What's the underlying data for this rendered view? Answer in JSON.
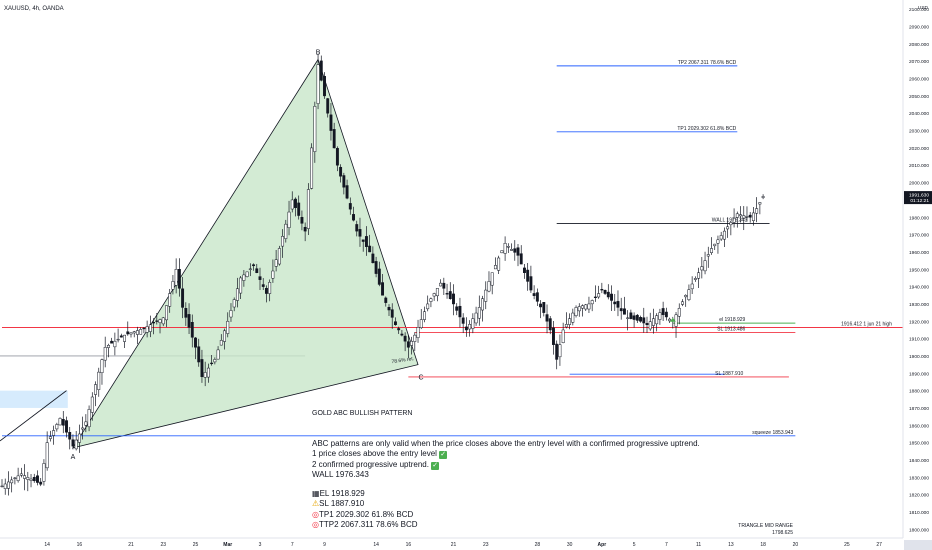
{
  "header": {
    "symbol": "XAUUSD, 4h, OANDA"
  },
  "currency": "USD",
  "price_badge": {
    "price": "1991.630",
    "countdown": "01:12:21"
  },
  "colors": {
    "background": "#ffffff",
    "candle": "#131722",
    "triangle_fill": "#c8e6c9",
    "red_line": "#f23645",
    "blue_line": "#2962ff",
    "green_line": "#4caf50",
    "text": "#131722"
  },
  "chart_data": {
    "type": "candlestick",
    "instrument": "XAUUSD, 4h, OANDA",
    "y_unit": "USD",
    "ylim": [
      1795,
      2103
    ],
    "y_ticks": [
      1800,
      1810,
      1820,
      1830,
      1840,
      1850,
      1860,
      1870,
      1880,
      1890,
      1900,
      1910,
      1920,
      1930,
      1940,
      1950,
      1960,
      1970,
      1980,
      1990,
      2000,
      2010,
      2020,
      2030,
      2040,
      2050,
      2060,
      2070,
      2080,
      2090,
      2100
    ],
    "y_tick_labels": [
      "1800.000",
      "1810.000",
      "1820.000",
      "1830.000",
      "1840.000",
      "1850.000",
      "1860.000",
      "1870.000",
      "1880.000",
      "1890.000",
      "1900.000",
      "1910.000",
      "1920.000",
      "1930.000",
      "1940.000",
      "1950.000",
      "1960.000",
      "1970.000",
      "1980.000",
      "1990.000",
      "2000.000",
      "2010.000",
      "2020.000",
      "2030.000",
      "2040.000",
      "2050.000",
      "2060.000",
      "2070.000",
      "2080.000",
      "2090.000",
      "2100.000"
    ],
    "x_ticks": [
      {
        "label": "14",
        "i": 7
      },
      {
        "label": "16",
        "i": 12
      },
      {
        "label": "21",
        "i": 20
      },
      {
        "label": "23",
        "i": 25
      },
      {
        "label": "25",
        "i": 30
      },
      {
        "label": "Mar",
        "i": 35,
        "bold": true
      },
      {
        "label": "3",
        "i": 40
      },
      {
        "label": "7",
        "i": 45
      },
      {
        "label": "9",
        "i": 50
      },
      {
        "label": "14",
        "i": 58
      },
      {
        "label": "16",
        "i": 63
      },
      {
        "label": "21",
        "i": 70
      },
      {
        "label": "23",
        "i": 75
      },
      {
        "label": "28",
        "i": 83
      },
      {
        "label": "30",
        "i": 88
      },
      {
        "label": "Apr",
        "i": 93,
        "bold": true
      },
      {
        "label": "5",
        "i": 98
      },
      {
        "label": "7",
        "i": 103
      },
      {
        "label": "11",
        "i": 108
      },
      {
        "label": "13",
        "i": 113
      },
      {
        "label": "18",
        "i": 118
      },
      {
        "label": "20",
        "i": 123
      },
      {
        "label": "25",
        "i": 131
      },
      {
        "label": "27",
        "i": 136
      }
    ],
    "close_anchors": [
      [
        0,
        1825
      ],
      [
        3,
        1832
      ],
      [
        6,
        1826
      ],
      [
        7,
        1850
      ],
      [
        9,
        1864
      ],
      [
        10,
        1856
      ],
      [
        11,
        1848
      ],
      [
        13,
        1862
      ],
      [
        16,
        1905
      ],
      [
        19,
        1912
      ],
      [
        22,
        1916
      ],
      [
        25,
        1922
      ],
      [
        27,
        1950
      ],
      [
        28,
        1928
      ],
      [
        30,
        1905
      ],
      [
        31,
        1888
      ],
      [
        33,
        1898
      ],
      [
        35,
        1920
      ],
      [
        37,
        1945
      ],
      [
        39,
        1952
      ],
      [
        41,
        1936
      ],
      [
        43,
        1962
      ],
      [
        45,
        1990
      ],
      [
        47,
        1972
      ],
      [
        49,
        2068
      ],
      [
        50,
        2050
      ],
      [
        52,
        2010
      ],
      [
        55,
        1972
      ],
      [
        57,
        1960
      ],
      [
        59,
        1935
      ],
      [
        61,
        1918
      ],
      [
        62,
        1912
      ],
      [
        63,
        1905
      ],
      [
        64,
        1912
      ],
      [
        66,
        1930
      ],
      [
        68,
        1942
      ],
      [
        70,
        1930
      ],
      [
        72,
        1915
      ],
      [
        74,
        1928
      ],
      [
        76,
        1948
      ],
      [
        78,
        1965
      ],
      [
        80,
        1958
      ],
      [
        82,
        1938
      ],
      [
        84,
        1925
      ],
      [
        85,
        1915
      ],
      [
        86,
        1898
      ],
      [
        87,
        1915
      ],
      [
        89,
        1928
      ],
      [
        91,
        1930
      ],
      [
        93,
        1938
      ],
      [
        95,
        1930
      ],
      [
        97,
        1922
      ],
      [
        99,
        1920
      ],
      [
        100,
        1918
      ],
      [
        102,
        1925
      ],
      [
        104,
        1920
      ],
      [
        106,
        1935
      ],
      [
        108,
        1948
      ],
      [
        110,
        1962
      ],
      [
        112,
        1972
      ],
      [
        114,
        1982
      ],
      [
        116,
        1980
      ],
      [
        117,
        1985
      ],
      [
        118,
        1992
      ]
    ],
    "abc_pattern": {
      "title": "GOLD ABC BULLISH PATTERN",
      "points": {
        "A": {
          "i": 11,
          "price": 1847
        },
        "B": {
          "i": 49,
          "price": 2071
        },
        "C": {
          "i": 64.5,
          "price": 1895
        }
      },
      "retracement_label": "78.6% ret."
    },
    "levels": [
      {
        "name": "TP2",
        "price": 2067.311,
        "label": "TP2 2067.311 78.6% BCD",
        "color": "#2962ff",
        "i1": 86,
        "i2": 114
      },
      {
        "name": "TP1",
        "price": 2029.302,
        "label": "TP1 2029.302 61.8% BCD",
        "color": "#2962ff",
        "i1": 86,
        "i2": 114
      },
      {
        "name": "WALL",
        "price": 1976.343,
        "label": "WALL 1976.343",
        "color": "#131722",
        "i1": 86,
        "i2": 119
      },
      {
        "name": "EL",
        "price": 1918.929,
        "label": "el 1918.929",
        "color": "#4caf50",
        "i1": 104,
        "i2": 123
      },
      {
        "name": "SL",
        "price": 1913.486,
        "label": "SL 1913.486",
        "color": "#f23645",
        "i1": 64,
        "i2": 123
      },
      {
        "name": "SL2",
        "price": 1887.91,
        "label": "SL 1887.910",
        "color": "#f23645",
        "i1": 63,
        "i2": 122
      },
      {
        "name": "squeeze",
        "price": 1853.943,
        "label": "squeeze 1853.943",
        "color": "#2962ff",
        "i1": 0,
        "i2": 123
      },
      {
        "name": "1jun21",
        "price": 1916.412,
        "label": "1916.412 1 jun 21 high",
        "color": "#f23645",
        "i1": 0,
        "i2": 139
      }
    ],
    "triangle_mid": {
      "label1": "TRIANGLE MID RANGE",
      "label2": "1798.625"
    }
  },
  "annotations": {
    "B": "B",
    "A": "A",
    "C": "C",
    "ret": "78.6% ret.",
    "pattern_title": "GOLD ABC BULLISH PATTERN",
    "note_line1": "ABC patterns are only valid when the price closes above the entry level with a confirmed progressive uptrend.",
    "note_line2": "1 price closes above the entry level",
    "note_line3": "2 confirmed progressive uptrend.",
    "note_line4": "WALL 1976.343",
    "note_line5": "EL 1918.929",
    "note_line6": "SL 1887.910",
    "note_line7": "TP1 2029.302 61.8% BCD",
    "note_line8": "TTP2 2067.311 78.6% BCD",
    "tp2": "TP2 2067.311 78.6% BCD",
    "tp1": "TP1 2029.302 61.8% BCD",
    "wall": "WALL 1976.343",
    "el": "el 1918.929",
    "sl": "SL 1913.486",
    "sl2": "SL 1887.910",
    "squeeze": "squeeze 1853.943",
    "jun": "1916.412 1 jun 21 high",
    "tri1": "TRIANGLE MID RANGE",
    "tri2": "1798.625"
  }
}
